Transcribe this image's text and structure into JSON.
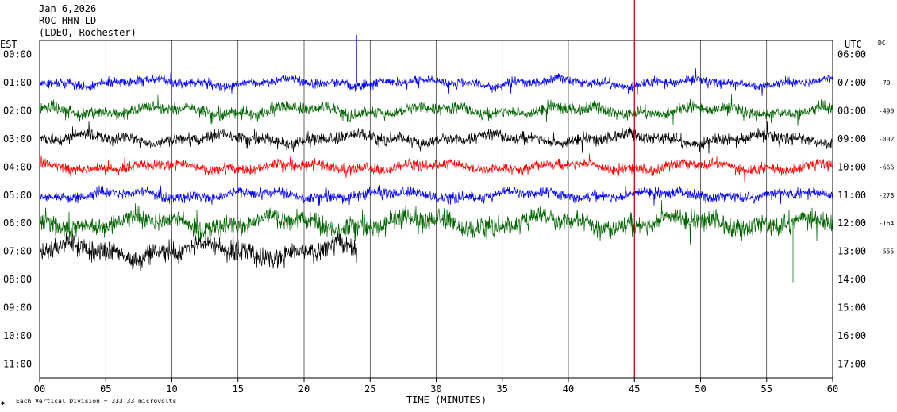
{
  "header": {
    "date": "Jan 6,2026",
    "station": "ROC HHN LD --",
    "network": "(LDEO, Rochester)"
  },
  "left_axis_title": "EST",
  "right_axis_title": "UTC",
  "dc_title": "DC",
  "footer": {
    "vertical_division": "Each Vertical Division =  333.33 microvolts"
  },
  "colors": {
    "blue": "#0000ff",
    "green": "#006400",
    "black": "#000000",
    "red": "#ff0000",
    "marker": "#a00000",
    "grid": "#000000"
  },
  "chart_data": {
    "type": "line",
    "xlabel": "TIME (MINUTES)",
    "x_ticks": [
      "00",
      "05",
      "10",
      "15",
      "20",
      "25",
      "30",
      "35",
      "40",
      "45",
      "50",
      "55",
      "60"
    ],
    "xlim": [
      0,
      60
    ],
    "left_ticks": [
      "00:00",
      "01:00",
      "02:00",
      "03:00",
      "04:00",
      "05:00",
      "06:00",
      "07:00",
      "08:00",
      "09:00",
      "10:00",
      "11:00"
    ],
    "right_ticks": [
      "06:00",
      "07:00",
      "08:00",
      "09:00",
      "10:00",
      "11:00",
      "12:00",
      "13:00",
      "14:00",
      "15:00",
      "16:00",
      "17:00"
    ],
    "grid": true,
    "marker_minute": 45,
    "traces": [
      {
        "hour_index": 1,
        "color_key": "blue",
        "dc": "-70",
        "end_minute": 60,
        "amplitude": 0.35,
        "spikes": [
          {
            "minute": 24,
            "height": 1.7
          }
        ]
      },
      {
        "hour_index": 2,
        "color_key": "green",
        "dc": "-490",
        "end_minute": 60,
        "amplitude": 0.45,
        "spikes": []
      },
      {
        "hour_index": 3,
        "color_key": "black",
        "dc": "-802",
        "end_minute": 60,
        "amplitude": 0.45,
        "spikes": []
      },
      {
        "hour_index": 4,
        "color_key": "red",
        "dc": "-666",
        "end_minute": 60,
        "amplitude": 0.4,
        "spikes": []
      },
      {
        "hour_index": 5,
        "color_key": "blue",
        "dc": "-278",
        "end_minute": 60,
        "amplitude": 0.4,
        "spikes": []
      },
      {
        "hour_index": 6,
        "color_key": "green",
        "dc": "-164",
        "end_minute": 60,
        "amplitude": 0.75,
        "spikes": [
          {
            "minute": 57,
            "height": -2.1
          }
        ]
      },
      {
        "hour_index": 7,
        "color_key": "black",
        "dc": "-555",
        "end_minute": 24,
        "amplitude": 0.8,
        "spikes": []
      }
    ]
  }
}
